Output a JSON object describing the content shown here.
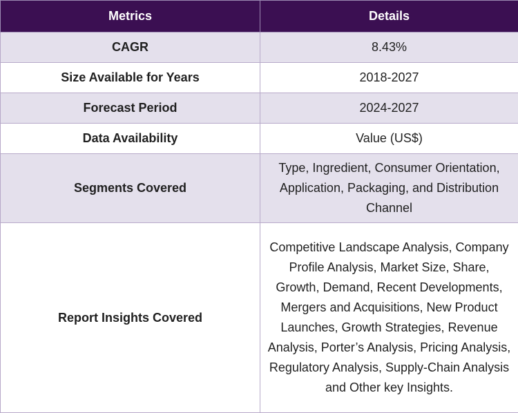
{
  "table": {
    "headers": [
      "Metrics",
      "Details"
    ],
    "rows": [
      {
        "metric": "CAGR",
        "detail": "8.43%"
      },
      {
        "metric": "Size Available for Years",
        "detail": "2018-2027"
      },
      {
        "metric": "Forecast Period",
        "detail": "2024-2027"
      },
      {
        "metric": "Data Availability",
        "detail": "Value (US$)"
      },
      {
        "metric": "Segments Covered",
        "detail": "Type, Ingredient, Consumer Orientation, Application, Packaging, and Distribution Channel"
      },
      {
        "metric": "Report Insights Covered",
        "detail": "Competitive Landscape Analysis, Company Profile Analysis, Market Size, Share, Growth, Demand, Recent Developments, Mergers and Acquisitions, New Product Launches, Growth Strategies, Revenue Analysis, Porter’s Analysis, Pricing Analysis, Regulatory Analysis, Supply-Chain Analysis and Other key Insights."
      }
    ]
  },
  "colors": {
    "header_bg": "#3b0f52",
    "header_text": "#ffffff",
    "row_shade": "#e4e0ec",
    "border": "#b7a9c9"
  }
}
